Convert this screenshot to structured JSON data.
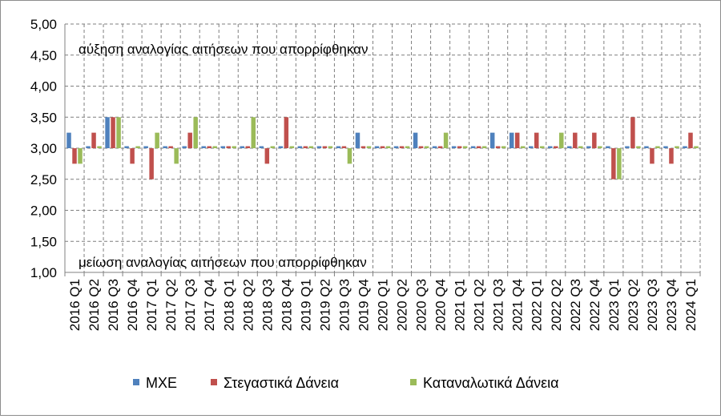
{
  "chart_data": {
    "type": "bar",
    "categories": [
      "2016 Q1",
      "2016 Q2",
      "2016 Q3",
      "2016 Q4",
      "2017 Q1",
      "2017 Q2",
      "2017 Q3",
      "2017 Q4",
      "2018 Q1",
      "2018 Q2",
      "2018 Q3",
      "2018 Q4",
      "2019 Q1",
      "2019 Q2",
      "2019 Q3",
      "2019 Q4",
      "2020 Q1",
      "2020 Q2",
      "2020 Q3",
      "2020 Q4",
      "2021 Q1",
      "2021 Q2",
      "2021 Q3",
      "2021 Q4",
      "2022 Q1",
      "2022 Q2",
      "2022 Q3",
      "2022 Q4",
      "2023 Q1",
      "2023 Q2",
      "2023 Q3",
      "2023 Q4",
      "2024 Q1"
    ],
    "series": [
      {
        "name": "ΜΧΕ",
        "color": "#4f81bd",
        "values": [
          3.25,
          3.0,
          3.5,
          3.0,
          3.0,
          3.0,
          3.0,
          3.0,
          3.0,
          3.0,
          3.0,
          3.0,
          3.0,
          3.0,
          3.0,
          3.25,
          3.0,
          3.0,
          3.25,
          3.0,
          3.0,
          3.0,
          3.25,
          3.25,
          3.0,
          3.0,
          3.0,
          3.0,
          3.0,
          3.0,
          3.0,
          3.0,
          3.0
        ]
      },
      {
        "name": "Στεγαστικά Δάνεια",
        "color": "#c0504d",
        "values": [
          2.75,
          3.25,
          3.5,
          2.75,
          2.5,
          3.0,
          3.25,
          3.0,
          3.0,
          3.0,
          2.75,
          3.5,
          3.0,
          3.0,
          3.0,
          3.0,
          3.0,
          3.0,
          3.0,
          3.0,
          3.0,
          3.0,
          3.0,
          3.25,
          3.25,
          3.0,
          3.25,
          3.25,
          2.5,
          3.5,
          2.75,
          2.75,
          3.25
        ]
      },
      {
        "name": "Καταναλωτικά Δάνεια",
        "color": "#9bbb59",
        "values": [
          2.75,
          3.0,
          3.5,
          3.0,
          3.25,
          2.75,
          3.5,
          3.0,
          3.0,
          3.5,
          3.0,
          3.0,
          3.0,
          3.0,
          2.75,
          3.0,
          3.0,
          3.0,
          3.0,
          3.25,
          3.0,
          3.0,
          3.0,
          3.0,
          3.0,
          3.25,
          3.0,
          3.0,
          2.5,
          3.0,
          3.0,
          3.0,
          3.0
        ]
      }
    ],
    "ylim": [
      1.0,
      5.0
    ],
    "yticks": [
      "1,00",
      "1,50",
      "2,00",
      "2,50",
      "3,00",
      "3,50",
      "4,00",
      "4,50",
      "5,00"
    ],
    "ytick_values": [
      1.0,
      1.5,
      2.0,
      2.5,
      3.0,
      3.5,
      4.0,
      4.5,
      5.0
    ],
    "baseline": 3.0,
    "annotations": {
      "top": "αύξηση αναλογίας αιτήσεων που απορρίφθηκαν",
      "bottom": "μείωση αναλογίας αιτήσεων που απορρίφθηκαν"
    },
    "grid": "dashed",
    "legend_position": "bottom"
  }
}
